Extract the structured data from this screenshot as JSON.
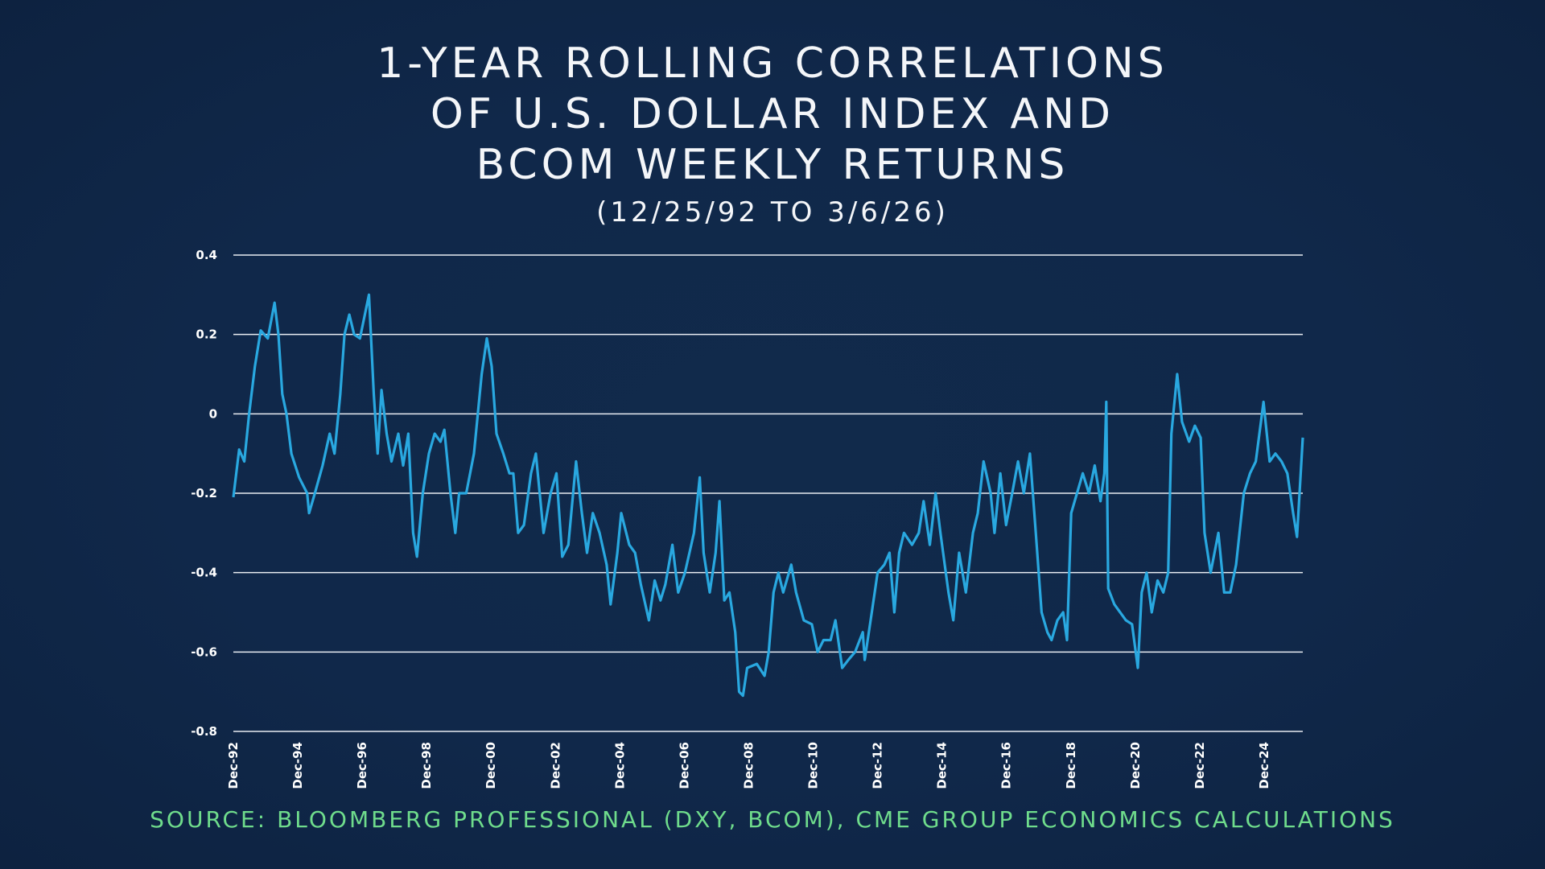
{
  "header": {
    "title_lines": [
      "1-YEAR ROLLING CORRELATIONS",
      "OF U.S. DOLLAR INDEX AND",
      "BCOM WEEKLY RETURNS"
    ],
    "subtitle": "(12/25/92 TO 3/6/26)"
  },
  "footer": {
    "source": "SOURCE: BLOOMBERG PROFESSIONAL (DXY, BCOM), CME GROUP ECONOMICS CALCULATIONS"
  },
  "colors": {
    "line": "#29a8e0",
    "background": "#10284a",
    "grid": "#e8ecf2",
    "source_text": "#6fdc8c"
  },
  "chart_data": {
    "type": "line",
    "title": "1-YEAR ROLLING CORRELATIONS OF U.S. DOLLAR INDEX AND BCOM WEEKLY RETURNS",
    "subtitle": "(12/25/92 TO 3/6/26)",
    "xlabel": "",
    "ylabel": "",
    "xlim": [
      1992.98,
      2026.18
    ],
    "ylim": [
      -0.8,
      0.4
    ],
    "grid": "horizontal",
    "legend": "none",
    "y_ticks": [
      {
        "value": 0.4,
        "label": "0.4"
      },
      {
        "value": 0.2,
        "label": "0.2"
      },
      {
        "value": 0,
        "label": "0"
      },
      {
        "value": -0.2,
        "label": "-0.2"
      },
      {
        "value": -0.4,
        "label": "-0.4"
      },
      {
        "value": -0.6,
        "label": "-0.6"
      },
      {
        "value": -0.8,
        "label": "-0.8"
      }
    ],
    "x_ticks": [
      {
        "value": 1992.98,
        "label": "Dec-92"
      },
      {
        "value": 1994.98,
        "label": "Dec-94"
      },
      {
        "value": 1996.98,
        "label": "Dec-96"
      },
      {
        "value": 1998.98,
        "label": "Dec-98"
      },
      {
        "value": 2000.98,
        "label": "Dec-00"
      },
      {
        "value": 2002.98,
        "label": "Dec-02"
      },
      {
        "value": 2004.98,
        "label": "Dec-04"
      },
      {
        "value": 2006.98,
        "label": "Dec-06"
      },
      {
        "value": 2008.98,
        "label": "Dec-08"
      },
      {
        "value": 2010.98,
        "label": "Dec-10"
      },
      {
        "value": 2012.98,
        "label": "Dec-12"
      },
      {
        "value": 2014.98,
        "label": "Dec-14"
      },
      {
        "value": 2016.98,
        "label": "Dec-16"
      },
      {
        "value": 2018.98,
        "label": "Dec-18"
      },
      {
        "value": 2020.98,
        "label": "Dec-20"
      },
      {
        "value": 2022.98,
        "label": "Dec-22"
      },
      {
        "value": 2024.98,
        "label": "Dec-24"
      }
    ],
    "series": [
      {
        "x": [
          1992.98,
          1993.16,
          1993.32,
          1993.47,
          1993.65,
          1993.83,
          1994.05,
          1994.26,
          1994.38,
          1994.5,
          1994.63,
          1994.78,
          1995.02,
          1995.27,
          1995.33,
          1995.51,
          1995.75,
          1995.97,
          1996.12,
          1996.3,
          1996.43,
          1996.58,
          1996.73,
          1996.91,
          1997.19,
          1997.34,
          1997.46,
          1997.58,
          1997.74,
          1997.89,
          1998.1,
          1998.25,
          1998.41,
          1998.56,
          1998.68,
          1998.86,
          1999.05,
          1999.23,
          1999.41,
          1999.53,
          1999.72,
          1999.87,
          1999.99,
          2000.21,
          2000.45,
          2000.69,
          2000.85,
          2001.0,
          2001.15,
          2001.36,
          2001.55,
          2001.67,
          2001.82,
          2002.0,
          2002.22,
          2002.37,
          2002.61,
          2002.83,
          2003.01,
          2003.19,
          2003.38,
          2003.62,
          2003.8,
          2003.96,
          2004.14,
          2004.35,
          2004.57,
          2004.69,
          2004.9,
          2005.02,
          2005.27,
          2005.45,
          2005.63,
          2005.88,
          2006.06,
          2006.24,
          2006.39,
          2006.61,
          2006.79,
          2007.0,
          2007.28,
          2007.46,
          2007.58,
          2007.77,
          2007.95,
          2008.07,
          2008.22,
          2008.38,
          2008.56,
          2008.68,
          2008.8,
          2008.93,
          2009.23,
          2009.47,
          2009.6,
          2009.75,
          2009.9,
          2010.05,
          2010.3,
          2010.45,
          2010.69,
          2010.94,
          2011.12,
          2011.3,
          2011.52,
          2011.67,
          2011.88,
          2012.07,
          2012.28,
          2012.52,
          2012.58,
          2012.8,
          2012.98,
          2013.19,
          2013.35,
          2013.5,
          2013.65,
          2013.8,
          2014.05,
          2014.26,
          2014.41,
          2014.6,
          2014.78,
          2014.93,
          2015.18,
          2015.33,
          2015.51,
          2015.72,
          2015.94,
          2016.09,
          2016.27,
          2016.49,
          2016.61,
          2016.79,
          2016.97,
          2017.16,
          2017.34,
          2017.52,
          2017.71,
          2017.89,
          2018.07,
          2018.25,
          2018.38,
          2018.56,
          2018.74,
          2018.86,
          2018.99,
          2019.17,
          2019.35,
          2019.54,
          2019.72,
          2019.9,
          2020.02,
          2020.08,
          2020.14,
          2020.33,
          2020.51,
          2020.69,
          2020.88,
          2021.06,
          2021.18,
          2021.33,
          2021.49,
          2021.67,
          2021.85,
          2022.0,
          2022.1,
          2022.28,
          2022.43,
          2022.65,
          2022.83,
          2023.01,
          2023.13,
          2023.32,
          2023.56,
          2023.74,
          2023.93,
          2024.11,
          2024.35,
          2024.54,
          2024.72,
          2024.96,
          2025.15,
          2025.33,
          2025.52,
          2025.7,
          2025.88,
          2026.0,
          2026.18
        ],
        "values": [
          -0.21,
          -0.09,
          -0.12,
          0.0,
          0.12,
          0.21,
          0.19,
          0.28,
          0.2,
          0.05,
          0.0,
          -0.1,
          -0.16,
          -0.2,
          -0.25,
          -0.2,
          -0.13,
          -0.05,
          -0.1,
          0.05,
          0.2,
          0.25,
          0.2,
          0.19,
          0.3,
          0.05,
          -0.1,
          0.06,
          -0.05,
          -0.12,
          -0.05,
          -0.13,
          -0.05,
          -0.3,
          -0.36,
          -0.2,
          -0.1,
          -0.05,
          -0.07,
          -0.04,
          -0.2,
          -0.3,
          -0.2,
          -0.2,
          -0.1,
          0.1,
          0.19,
          0.12,
          -0.05,
          -0.1,
          -0.15,
          -0.15,
          -0.3,
          -0.28,
          -0.15,
          -0.1,
          -0.3,
          -0.2,
          -0.15,
          -0.36,
          -0.33,
          -0.12,
          -0.25,
          -0.35,
          -0.25,
          -0.3,
          -0.38,
          -0.48,
          -0.35,
          -0.25,
          -0.33,
          -0.35,
          -0.43,
          -0.52,
          -0.42,
          -0.47,
          -0.43,
          -0.33,
          -0.45,
          -0.4,
          -0.3,
          -0.16,
          -0.35,
          -0.45,
          -0.35,
          -0.22,
          -0.47,
          -0.45,
          -0.55,
          -0.7,
          -0.71,
          -0.64,
          -0.63,
          -0.66,
          -0.6,
          -0.45,
          -0.4,
          -0.45,
          -0.38,
          -0.45,
          -0.52,
          -0.53,
          -0.6,
          -0.57,
          -0.57,
          -0.52,
          -0.64,
          -0.62,
          -0.6,
          -0.55,
          -0.62,
          -0.5,
          -0.4,
          -0.38,
          -0.35,
          -0.5,
          -0.35,
          -0.3,
          -0.33,
          -0.3,
          -0.22,
          -0.33,
          -0.2,
          -0.3,
          -0.45,
          -0.52,
          -0.35,
          -0.45,
          -0.3,
          -0.25,
          -0.12,
          -0.2,
          -0.3,
          -0.15,
          -0.28,
          -0.2,
          -0.12,
          -0.2,
          -0.1,
          -0.3,
          -0.5,
          -0.55,
          -0.57,
          -0.52,
          -0.5,
          -0.57,
          -0.25,
          -0.2,
          -0.15,
          -0.2,
          -0.13,
          -0.22,
          -0.15,
          0.03,
          -0.44,
          -0.48,
          -0.5,
          -0.52,
          -0.53,
          -0.64,
          -0.45,
          -0.4,
          -0.5,
          -0.42,
          -0.45,
          -0.4,
          -0.05,
          0.1,
          -0.02,
          -0.07,
          -0.03,
          -0.06,
          -0.3,
          -0.4,
          -0.3,
          -0.45,
          -0.45,
          -0.38,
          -0.2,
          -0.15,
          -0.12,
          0.03,
          -0.12,
          -0.1,
          -0.12,
          -0.15,
          -0.25,
          -0.31,
          -0.06
        ]
      }
    ]
  }
}
